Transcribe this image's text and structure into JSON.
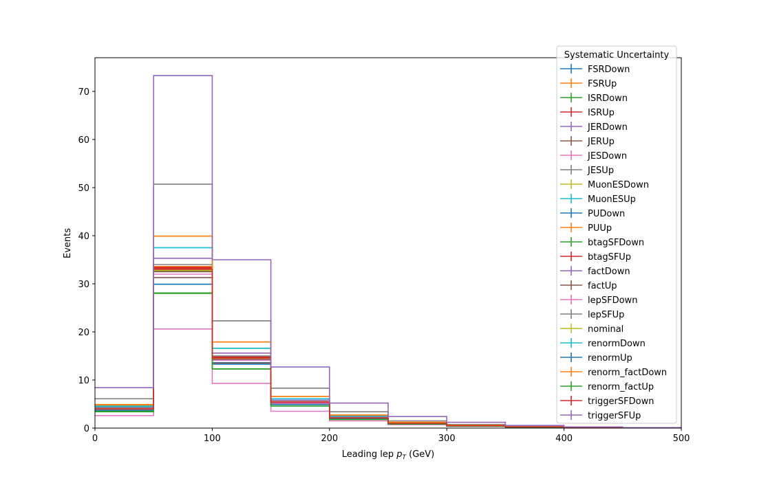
{
  "chart_data": {
    "type": "step-histogram",
    "xlabel_main": "Leading lep ",
    "xlabel_sym": "p",
    "xlabel_sub": "T",
    "xlabel_unit": " (GeV)",
    "ylabel": "Events",
    "xlim": [
      0,
      500
    ],
    "ylim": [
      0,
      77
    ],
    "grid": false,
    "bin_edges": [
      0,
      50,
      100,
      150,
      200,
      250,
      300,
      350,
      400,
      450,
      500
    ],
    "x_ticks": [
      "0",
      "100",
      "200",
      "300",
      "400",
      "500"
    ],
    "y_ticks": [
      "0",
      "10",
      "20",
      "30",
      "40",
      "50",
      "60",
      "70"
    ],
    "legend": {
      "title": "Systematic Uncertainty",
      "placement": "upper-right"
    },
    "series": [
      {
        "name": "FSRDown",
        "color": "#1f77b4",
        "values": [
          3.9,
          29.9,
          13.6,
          5.0,
          2.0,
          0.9,
          0.5,
          0.25,
          0.1,
          0.05
        ]
      },
      {
        "name": "FSRUp",
        "color": "#ff7f0e",
        "values": [
          4.6,
          33.6,
          14.9,
          5.5,
          2.2,
          1.0,
          0.5,
          0.25,
          0.1,
          0.05
        ]
      },
      {
        "name": "ISRDown",
        "color": "#2ca02c",
        "values": [
          3.8,
          32.6,
          14.3,
          5.3,
          2.1,
          1.0,
          0.5,
          0.25,
          0.1,
          0.05
        ]
      },
      {
        "name": "ISRUp",
        "color": "#d62728",
        "values": [
          4.1,
          33.2,
          14.6,
          5.4,
          2.1,
          1.0,
          0.5,
          0.25,
          0.1,
          0.05
        ]
      },
      {
        "name": "JERDown",
        "color": "#9467bd",
        "values": [
          4.0,
          33.0,
          14.5,
          5.3,
          2.1,
          1.0,
          0.5,
          0.25,
          0.1,
          0.05
        ]
      },
      {
        "name": "JERUp",
        "color": "#8c564b",
        "values": [
          3.7,
          31.3,
          13.5,
          5.0,
          2.0,
          0.9,
          0.5,
          0.25,
          0.1,
          0.05
        ]
      },
      {
        "name": "JESDown",
        "color": "#e377c2",
        "values": [
          2.6,
          20.6,
          9.3,
          3.5,
          1.5,
          0.7,
          0.35,
          0.2,
          0.08,
          0.04
        ]
      },
      {
        "name": "JESUp",
        "color": "#7f7f7f",
        "values": [
          6.1,
          50.7,
          22.3,
          8.3,
          3.4,
          1.5,
          0.75,
          0.35,
          0.15,
          0.07
        ]
      },
      {
        "name": "MuonESDown",
        "color": "#bcbd22",
        "values": [
          4.0,
          32.8,
          14.4,
          5.3,
          2.1,
          1.0,
          0.5,
          0.25,
          0.1,
          0.05
        ]
      },
      {
        "name": "MuonESUp",
        "color": "#17becf",
        "values": [
          4.6,
          37.5,
          16.6,
          6.1,
          2.5,
          1.1,
          0.55,
          0.27,
          0.11,
          0.05
        ]
      },
      {
        "name": "PUDown",
        "color": "#1f77b4",
        "values": [
          4.1,
          33.4,
          14.7,
          5.4,
          2.2,
          1.0,
          0.5,
          0.25,
          0.1,
          0.05
        ]
      },
      {
        "name": "PUUp",
        "color": "#ff7f0e",
        "values": [
          4.8,
          39.9,
          17.9,
          6.6,
          2.7,
          1.2,
          0.6,
          0.28,
          0.12,
          0.06
        ]
      },
      {
        "name": "btagSFDown",
        "color": "#2ca02c",
        "values": [
          3.4,
          28.0,
          12.3,
          4.6,
          1.8,
          0.85,
          0.42,
          0.2,
          0.09,
          0.04
        ]
      },
      {
        "name": "btagSFUp",
        "color": "#d62728",
        "values": [
          4.1,
          33.4,
          14.8,
          5.5,
          2.2,
          1.0,
          0.5,
          0.25,
          0.1,
          0.05
        ]
      },
      {
        "name": "factDown",
        "color": "#9467bd",
        "values": [
          4.3,
          35.3,
          15.6,
          5.8,
          2.3,
          1.1,
          0.53,
          0.26,
          0.1,
          0.05
        ]
      },
      {
        "name": "factUp",
        "color": "#8c564b",
        "values": [
          4.0,
          32.5,
          14.3,
          5.3,
          2.1,
          1.0,
          0.5,
          0.25,
          0.1,
          0.05
        ]
      },
      {
        "name": "lepSFDown",
        "color": "#e377c2",
        "values": [
          3.9,
          32.0,
          14.1,
          5.2,
          2.1,
          0.95,
          0.48,
          0.24,
          0.1,
          0.05
        ]
      },
      {
        "name": "lepSFUp",
        "color": "#7f7f7f",
        "values": [
          4.2,
          34.0,
          15.0,
          5.5,
          2.2,
          1.0,
          0.5,
          0.25,
          0.1,
          0.05
        ]
      },
      {
        "name": "nominal",
        "color": "#bcbd22",
        "values": [
          4.0,
          33.0,
          14.6,
          5.4,
          2.1,
          1.0,
          0.5,
          0.25,
          0.1,
          0.05
        ]
      },
      {
        "name": "renormDown",
        "color": "#17becf",
        "values": [
          4.5,
          37.5,
          16.6,
          6.1,
          2.5,
          1.1,
          0.55,
          0.27,
          0.11,
          0.05
        ]
      },
      {
        "name": "renormUp",
        "color": "#1f77b4",
        "values": [
          3.7,
          29.9,
          13.3,
          4.9,
          2.0,
          0.9,
          0.45,
          0.22,
          0.09,
          0.04
        ]
      },
      {
        "name": "renorm_factDown",
        "color": "#ff7f0e",
        "values": [
          4.9,
          39.9,
          17.9,
          6.6,
          2.7,
          1.2,
          0.6,
          0.28,
          0.12,
          0.06
        ]
      },
      {
        "name": "renorm_factUp",
        "color": "#2ca02c",
        "values": [
          3.5,
          28.1,
          12.3,
          4.6,
          1.8,
          0.85,
          0.42,
          0.2,
          0.09,
          0.04
        ]
      },
      {
        "name": "triggerSFDown",
        "color": "#d62728",
        "values": [
          4.0,
          33.0,
          14.6,
          5.4,
          2.1,
          1.0,
          0.5,
          0.25,
          0.1,
          0.05
        ]
      },
      {
        "name": "triggerSFUp",
        "color": "#9467bd",
        "values": [
          8.4,
          73.3,
          35.0,
          12.7,
          5.2,
          2.4,
          1.2,
          0.55,
          0.25,
          0.1
        ]
      }
    ]
  }
}
